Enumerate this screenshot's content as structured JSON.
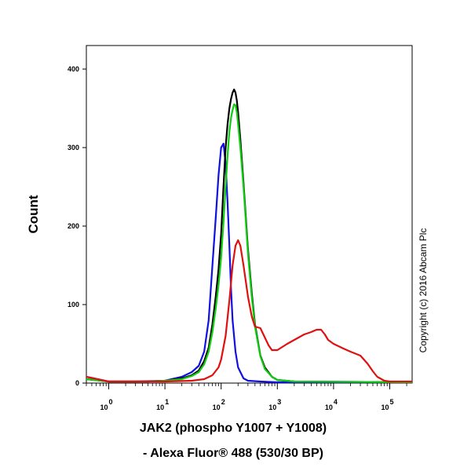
{
  "chart_data": {
    "type": "line",
    "xlabel_line1": "JAK2 (phospho Y1007 + Y1008)",
    "xlabel_line2": "- Alexa Fluor® 488 (530/30 BP)",
    "ylabel": "Count",
    "x_scale": "log",
    "xlim": [
      0.4,
      250000
    ],
    "ylim": [
      0,
      430
    ],
    "yticks": [
      0,
      100,
      200,
      300,
      400
    ],
    "xticks": [
      {
        "value": 1,
        "base": "10",
        "exp": "0"
      },
      {
        "value": 10,
        "base": "10",
        "exp": "1"
      },
      {
        "value": 100,
        "base": "10",
        "exp": "2"
      },
      {
        "value": 1000,
        "base": "10",
        "exp": "3"
      },
      {
        "value": 10000,
        "base": "10",
        "exp": "4"
      },
      {
        "value": 100000,
        "base": "10",
        "exp": "5"
      }
    ],
    "copyright": "Copyright (c) 2016 Abcam Plc",
    "series": [
      {
        "color": "#1010e0",
        "points": [
          [
            0.4,
            8
          ],
          [
            1,
            2
          ],
          [
            3,
            2
          ],
          [
            10,
            3
          ],
          [
            20,
            8
          ],
          [
            30,
            14
          ],
          [
            40,
            22
          ],
          [
            50,
            40
          ],
          [
            60,
            80
          ],
          [
            70,
            150
          ],
          [
            80,
            210
          ],
          [
            90,
            265
          ],
          [
            100,
            300
          ],
          [
            110,
            305
          ],
          [
            120,
            280
          ],
          [
            130,
            230
          ],
          [
            140,
            175
          ],
          [
            150,
            120
          ],
          [
            160,
            80
          ],
          [
            180,
            40
          ],
          [
            200,
            20
          ],
          [
            250,
            6
          ],
          [
            300,
            3
          ],
          [
            500,
            2
          ],
          [
            1000,
            1
          ],
          [
            250000,
            1
          ]
        ]
      },
      {
        "color": "#000000",
        "points": [
          [
            0.4,
            5
          ],
          [
            1,
            2
          ],
          [
            5,
            2
          ],
          [
            10,
            3
          ],
          [
            20,
            6
          ],
          [
            30,
            10
          ],
          [
            40,
            16
          ],
          [
            50,
            28
          ],
          [
            60,
            45
          ],
          [
            70,
            75
          ],
          [
            80,
            110
          ],
          [
            90,
            145
          ],
          [
            100,
            190
          ],
          [
            110,
            250
          ],
          [
            120,
            300
          ],
          [
            130,
            330
          ],
          [
            140,
            350
          ],
          [
            150,
            362
          ],
          [
            160,
            370
          ],
          [
            170,
            374
          ],
          [
            180,
            370
          ],
          [
            190,
            360
          ],
          [
            200,
            345
          ],
          [
            220,
            310
          ],
          [
            250,
            255
          ],
          [
            300,
            170
          ],
          [
            350,
            115
          ],
          [
            400,
            75
          ],
          [
            500,
            35
          ],
          [
            600,
            20
          ],
          [
            800,
            8
          ],
          [
            1000,
            4
          ],
          [
            2000,
            2
          ],
          [
            250000,
            1
          ]
        ]
      },
      {
        "color": "#10cc10",
        "points": [
          [
            0.4,
            5
          ],
          [
            1,
            2
          ],
          [
            5,
            2
          ],
          [
            10,
            3
          ],
          [
            20,
            5
          ],
          [
            30,
            9
          ],
          [
            40,
            14
          ],
          [
            50,
            24
          ],
          [
            60,
            40
          ],
          [
            70,
            65
          ],
          [
            80,
            95
          ],
          [
            90,
            125
          ],
          [
            100,
            160
          ],
          [
            110,
            205
          ],
          [
            120,
            250
          ],
          [
            130,
            290
          ],
          [
            140,
            320
          ],
          [
            150,
            338
          ],
          [
            160,
            348
          ],
          [
            170,
            355
          ],
          [
            180,
            354
          ],
          [
            190,
            345
          ],
          [
            200,
            330
          ],
          [
            220,
            300
          ],
          [
            250,
            250
          ],
          [
            300,
            165
          ],
          [
            350,
            110
          ],
          [
            400,
            72
          ],
          [
            500,
            34
          ],
          [
            600,
            18
          ],
          [
            800,
            8
          ],
          [
            1000,
            4
          ],
          [
            2000,
            2
          ],
          [
            250000,
            1
          ]
        ]
      },
      {
        "color": "#e01010",
        "points": [
          [
            0.4,
            8
          ],
          [
            1,
            2
          ],
          [
            10,
            2
          ],
          [
            30,
            3
          ],
          [
            50,
            5
          ],
          [
            70,
            10
          ],
          [
            90,
            20
          ],
          [
            100,
            30
          ],
          [
            120,
            60
          ],
          [
            140,
            105
          ],
          [
            160,
            150
          ],
          [
            180,
            175
          ],
          [
            200,
            182
          ],
          [
            220,
            175
          ],
          [
            250,
            150
          ],
          [
            300,
            110
          ],
          [
            350,
            85
          ],
          [
            400,
            72
          ],
          [
            500,
            70
          ],
          [
            600,
            58
          ],
          [
            700,
            48
          ],
          [
            800,
            42
          ],
          [
            1000,
            42
          ],
          [
            1500,
            50
          ],
          [
            2000,
            55
          ],
          [
            3000,
            62
          ],
          [
            4000,
            65
          ],
          [
            5000,
            68
          ],
          [
            6000,
            68
          ],
          [
            7000,
            62
          ],
          [
            8000,
            55
          ],
          [
            10000,
            50
          ],
          [
            15000,
            44
          ],
          [
            20000,
            40
          ],
          [
            30000,
            35
          ],
          [
            40000,
            25
          ],
          [
            50000,
            15
          ],
          [
            60000,
            8
          ],
          [
            80000,
            3
          ],
          [
            100000,
            2
          ],
          [
            250000,
            2
          ]
        ]
      }
    ]
  }
}
